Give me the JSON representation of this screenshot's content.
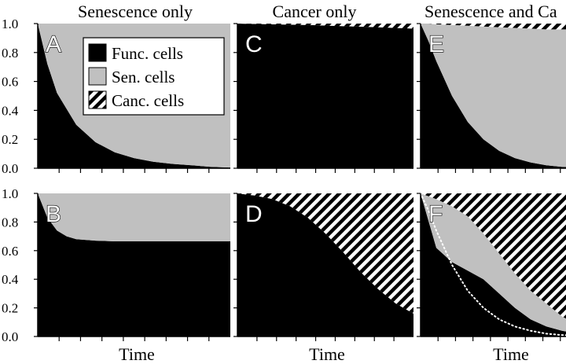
{
  "colors": {
    "functional": "#000000",
    "senescent": "#c0c0c0",
    "cancer_stripe": "#000000",
    "cancer_bg": "#ffffff",
    "background": "#ffffff"
  },
  "legend": {
    "placement": "inside panel A, upper-right",
    "items": [
      {
        "label": "Func. cells",
        "fill": "functional"
      },
      {
        "label": "Sen. cells",
        "fill": "senescent"
      },
      {
        "label": "Canc. cells",
        "fill": "cancer"
      }
    ]
  },
  "y_ticks": [
    "1.0",
    "0.8",
    "0.6",
    "0.4",
    "0.2",
    "0.0"
  ],
  "chart_data": [
    {
      "type": "area",
      "panel": "A",
      "title": "Senescence only",
      "xlabel": "",
      "ylim": [
        0,
        1
      ],
      "x": [
        0,
        0.05,
        0.1,
        0.2,
        0.3,
        0.4,
        0.5,
        0.6,
        0.7,
        0.8,
        0.9,
        1.0
      ],
      "series": [
        {
          "name": "Func. cells",
          "values": [
            1.0,
            0.72,
            0.52,
            0.3,
            0.18,
            0.11,
            0.07,
            0.045,
            0.03,
            0.02,
            0.01,
            0.005
          ]
        },
        {
          "name": "Sen. cells",
          "values": [
            0.0,
            0.28,
            0.48,
            0.7,
            0.82,
            0.89,
            0.93,
            0.955,
            0.97,
            0.98,
            0.99,
            0.995
          ]
        },
        {
          "name": "Canc. cells",
          "values": [
            0,
            0,
            0,
            0,
            0,
            0,
            0,
            0,
            0,
            0,
            0,
            0
          ]
        }
      ]
    },
    {
      "type": "area",
      "panel": "B",
      "title": "",
      "xlabel": "Time",
      "ylim": [
        0,
        1
      ],
      "x": [
        0,
        0.05,
        0.1,
        0.15,
        0.2,
        0.3,
        0.4,
        0.5,
        0.6,
        0.7,
        0.8,
        0.9,
        1.0
      ],
      "series": [
        {
          "name": "Func. cells",
          "values": [
            1.0,
            0.83,
            0.74,
            0.7,
            0.68,
            0.67,
            0.665,
            0.665,
            0.665,
            0.665,
            0.665,
            0.665,
            0.665
          ]
        },
        {
          "name": "Sen. cells",
          "values": [
            0.0,
            0.17,
            0.26,
            0.3,
            0.32,
            0.33,
            0.335,
            0.335,
            0.335,
            0.335,
            0.335,
            0.335,
            0.335
          ]
        },
        {
          "name": "Canc. cells",
          "values": [
            0,
            0,
            0,
            0,
            0,
            0,
            0,
            0,
            0,
            0,
            0,
            0,
            0
          ]
        }
      ]
    },
    {
      "type": "area",
      "panel": "C",
      "title": "Cancer only",
      "xlabel": "",
      "ylim": [
        0,
        1
      ],
      "x": [
        0,
        0.2,
        0.4,
        0.6,
        0.8,
        1.0
      ],
      "series": [
        {
          "name": "Func. cells",
          "values": [
            1.0,
            0.995,
            0.99,
            0.982,
            0.975,
            0.965
          ]
        },
        {
          "name": "Sen. cells",
          "values": [
            0,
            0,
            0,
            0,
            0,
            0
          ]
        },
        {
          "name": "Canc. cells",
          "values": [
            0.0,
            0.005,
            0.01,
            0.018,
            0.025,
            0.035
          ]
        }
      ]
    },
    {
      "type": "area",
      "panel": "D",
      "title": "",
      "xlabel": "Time",
      "ylim": [
        0,
        1
      ],
      "x": [
        0,
        0.1,
        0.2,
        0.3,
        0.4,
        0.5,
        0.6,
        0.7,
        0.8,
        0.9,
        1.0
      ],
      "series": [
        {
          "name": "Func. cells",
          "values": [
            1.0,
            0.985,
            0.96,
            0.91,
            0.83,
            0.72,
            0.59,
            0.45,
            0.33,
            0.23,
            0.16
          ]
        },
        {
          "name": "Sen. cells",
          "values": [
            0,
            0,
            0,
            0,
            0,
            0,
            0,
            0,
            0,
            0,
            0
          ]
        },
        {
          "name": "Canc. cells",
          "values": [
            0.0,
            0.015,
            0.04,
            0.09,
            0.17,
            0.28,
            0.41,
            0.55,
            0.67,
            0.77,
            0.84
          ]
        }
      ]
    },
    {
      "type": "area",
      "panel": "E",
      "title": "Senescence and Ca",
      "xlabel": "",
      "ylim": [
        0,
        1
      ],
      "x": [
        0,
        0.05,
        0.1,
        0.2,
        0.3,
        0.4,
        0.5,
        0.6,
        0.7,
        0.8,
        0.9,
        1.0
      ],
      "series": [
        {
          "name": "Func. cells",
          "values": [
            1.0,
            0.88,
            0.74,
            0.5,
            0.32,
            0.2,
            0.12,
            0.07,
            0.04,
            0.02,
            0.01,
            0.005
          ]
        },
        {
          "name": "Sen. cells",
          "values": [
            0.0,
            0.12,
            0.255,
            0.49,
            0.665,
            0.78,
            0.855,
            0.9,
            0.925,
            0.94,
            0.95,
            0.955
          ]
        },
        {
          "name": "Canc. cells",
          "values": [
            0.0,
            0.0,
            0.005,
            0.01,
            0.015,
            0.02,
            0.025,
            0.03,
            0.035,
            0.04,
            0.04,
            0.04
          ]
        }
      ]
    },
    {
      "type": "area",
      "panel": "F",
      "title": "",
      "xlabel": "Time",
      "ylim": [
        0,
        1
      ],
      "x": [
        0,
        0.1,
        0.2,
        0.3,
        0.4,
        0.5,
        0.6,
        0.7,
        0.8,
        0.9,
        1.0
      ],
      "series": [
        {
          "name": "Func. cells",
          "values": [
            1.0,
            0.62,
            0.52,
            0.46,
            0.4,
            0.3,
            0.2,
            0.12,
            0.07,
            0.04,
            0.02
          ]
        },
        {
          "name": "Sen. cells",
          "values": [
            0.0,
            0.34,
            0.39,
            0.38,
            0.32,
            0.28,
            0.24,
            0.2,
            0.16,
            0.1,
            0.06
          ]
        },
        {
          "name": "Canc. cells",
          "values": [
            0.0,
            0.04,
            0.09,
            0.16,
            0.28,
            0.42,
            0.56,
            0.68,
            0.77,
            0.86,
            0.92
          ]
        }
      ],
      "reference_line": {
        "style": "white dotted",
        "x": [
          0,
          0.05,
          0.1,
          0.2,
          0.3,
          0.4,
          0.5,
          0.6,
          0.7,
          0.8,
          0.9,
          1.0
        ],
        "values": [
          1.0,
          0.88,
          0.74,
          0.5,
          0.32,
          0.2,
          0.12,
          0.07,
          0.04,
          0.02,
          0.01,
          0.005
        ]
      }
    }
  ]
}
